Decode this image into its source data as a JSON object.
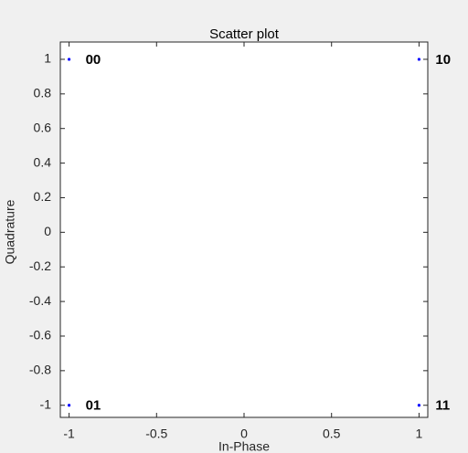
{
  "chart_data": {
    "type": "scatter",
    "title": "Scatter plot",
    "xlabel": "In-Phase",
    "ylabel": "Quadrature",
    "x": [
      -1,
      -1,
      1,
      1
    ],
    "y": [
      1,
      -1,
      1,
      -1
    ],
    "color": "#0000ff",
    "xlim": [
      -1.05,
      1.05
    ],
    "ylim": [
      -1.07,
      1.1
    ],
    "xticks": [
      -1,
      -0.5,
      0,
      0.5,
      1
    ],
    "yticks": [
      -1,
      -0.8,
      -0.6,
      -0.4,
      -0.2,
      0,
      0.2,
      0.4,
      0.6,
      0.8,
      1
    ],
    "grid": false,
    "annotations": [
      {
        "text": "00",
        "x": -1,
        "y": 1
      },
      {
        "text": "01",
        "x": -1,
        "y": -1
      },
      {
        "text": "10",
        "x": 1,
        "y": 1
      },
      {
        "text": "11",
        "x": 1,
        "y": -1
      }
    ]
  }
}
